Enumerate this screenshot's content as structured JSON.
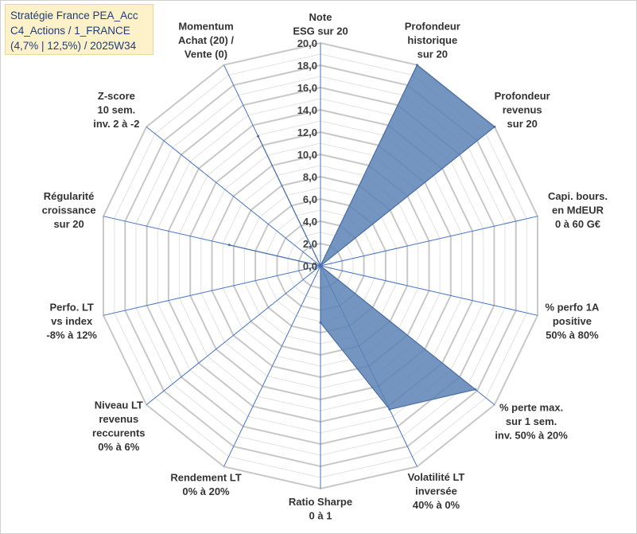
{
  "header": {
    "title_lines": [
      "Stratégie France PEA_Acc",
      "C4_Actions / 1_FRANCE",
      "(4,7% | 12,5%) / 2025W34"
    ]
  },
  "chart_data": {
    "type": "radar",
    "axes": [
      {
        "label_lines": [
          "Note",
          "ESG sur 20"
        ],
        "value": 0.0
      },
      {
        "label_lines": [
          "Profondeur",
          "historique",
          "sur 20"
        ],
        "value": 20.0
      },
      {
        "label_lines": [
          "Profondeur",
          "revenus",
          "sur 20"
        ],
        "value": 20.0
      },
      {
        "label_lines": [
          "Capi. bours.",
          "en MdEUR",
          "0 à 60 G€"
        ],
        "value": 0.0
      },
      {
        "label_lines": [
          "% perfo 1A",
          "positive",
          "50% à 80%"
        ],
        "value": 0.0
      },
      {
        "label_lines": [
          "% perte max.",
          "sur 1 sem.",
          "inv. 50% à 20%"
        ],
        "value": 17.8
      },
      {
        "label_lines": [
          "Volatilité LT",
          "inversée",
          "40% à 0%"
        ],
        "value": 14.3
      },
      {
        "label_lines": [
          "Ratio Sharpe",
          "0 à 1"
        ],
        "value": 5.1
      },
      {
        "label_lines": [
          "Rendement LT",
          "0% à 20%"
        ],
        "value": 0.0
      },
      {
        "label_lines": [
          "Niveau LT",
          "revenus",
          "reccurents",
          "0% à 6%"
        ],
        "value": 0.0
      },
      {
        "label_lines": [
          "Perfo. LT",
          "vs index",
          "-8% à 12%"
        ],
        "value": 0.0
      },
      {
        "label_lines": [
          "Régularité",
          "croissance",
          "sur 20"
        ],
        "value": 8.4
      },
      {
        "label_lines": [
          "Z-score",
          "10 sem.",
          "inv. 2 à -2"
        ],
        "value": 0.0
      },
      {
        "label_lines": [
          "Momentum",
          "Achat (20) /",
          "Vente (0)"
        ],
        "value": 12.9
      }
    ],
    "ticks": [
      "0,0",
      "2,0",
      "4,0",
      "6,0",
      "8,0",
      "10,0",
      "12,0",
      "14,0",
      "16,0",
      "18,0",
      "20,0"
    ],
    "range": [
      0,
      20
    ],
    "tick_step": 2,
    "gridlines": true,
    "minor_gridlines": true,
    "legend": "none",
    "colors": {
      "fill": "#5b83b5",
      "stroke": "#4a6fa5",
      "axis": "#4472c4",
      "grid_major": "#c8c8c8",
      "grid_minor": "#e2e2e2"
    }
  }
}
